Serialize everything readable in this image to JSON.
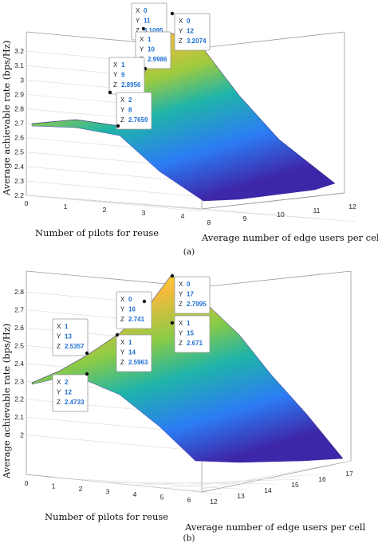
{
  "chart_data": [
    {
      "type": "surface",
      "caption": "(a)",
      "xlabel": "Number of pilots for reuse",
      "ylabel": "Average number of edge users per cell",
      "zlabel": "Average achievable rate (bps/Hz)",
      "x_ticks": [
        "0",
        "1",
        "2",
        "3",
        "4"
      ],
      "y_ticks": [
        "8",
        "9",
        "10",
        "11",
        "12"
      ],
      "z_ticks": [
        "2.2",
        "2.3",
        "2.4",
        "2.5",
        "2.6",
        "2.7",
        "2.8",
        "2.9",
        "3",
        "3.1",
        "3.2"
      ],
      "xlim": [
        0,
        4
      ],
      "ylim": [
        8,
        12
      ],
      "zlim": [
        2.2,
        3.3
      ],
      "colormap": [
        "#3e26a8",
        "#2c7cf4",
        "#1ab3b4",
        "#7fcb4a",
        "#f6ba3c",
        "#f9fb15"
      ],
      "datatips": [
        {
          "x": "0",
          "y": "11",
          "z": "3.1095"
        },
        {
          "x": "0",
          "y": "12",
          "z": "3.2074"
        },
        {
          "x": "1",
          "y": "10",
          "z": "2.9986"
        },
        {
          "x": "1",
          "y": "9",
          "z": "2.8956"
        },
        {
          "x": "2",
          "y": "8",
          "z": "2.7659"
        }
      ]
    },
    {
      "type": "surface",
      "caption": "(b)",
      "xlabel": "Number of pilots for reuse",
      "ylabel": "Average number of edge users per cell",
      "zlabel": "Average achievable rate (bps/Hz)",
      "x_ticks": [
        "0",
        "1",
        "2",
        "3",
        "4",
        "5",
        "6"
      ],
      "y_ticks": [
        "12",
        "13",
        "14",
        "15",
        "16",
        "17"
      ],
      "z_ticks": [
        "2",
        "2.1",
        "2.2",
        "2.3",
        "2.4",
        "2.5",
        "2.6",
        "2.7",
        "2.8"
      ],
      "xlim": [
        0,
        6
      ],
      "ylim": [
        12,
        17
      ],
      "zlim": [
        1.9,
        2.85
      ],
      "colormap": [
        "#3e26a8",
        "#2c7cf4",
        "#1ab3b4",
        "#7fcb4a",
        "#f6ba3c",
        "#f9fb15"
      ],
      "datatips": [
        {
          "x": "0",
          "y": "17",
          "z": "2.7995"
        },
        {
          "x": "0",
          "y": "16",
          "z": "2.741"
        },
        {
          "x": "1",
          "y": "15",
          "z": "2.671"
        },
        {
          "x": "1",
          "y": "13",
          "z": "2.5357"
        },
        {
          "x": "1",
          "y": "14",
          "z": "2.5963"
        },
        {
          "x": "2",
          "y": "12",
          "z": "2.4733"
        }
      ]
    }
  ]
}
